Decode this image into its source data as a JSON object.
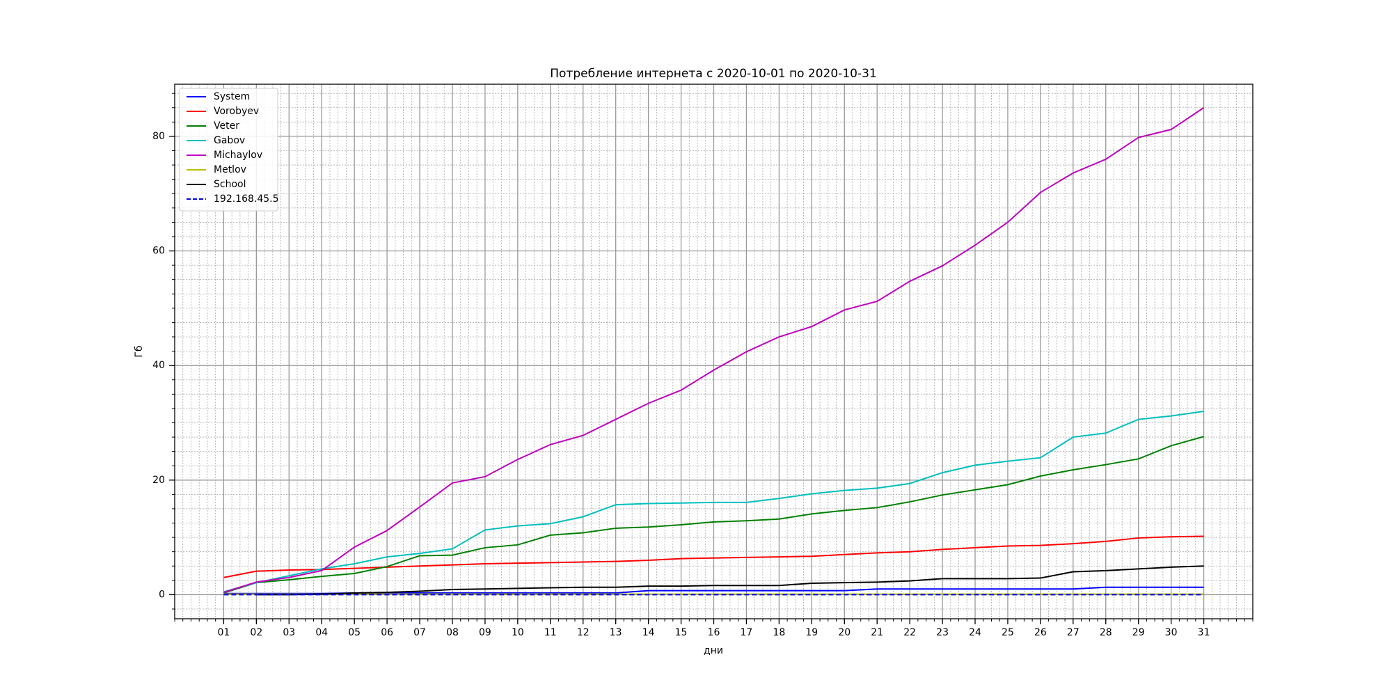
{
  "chart_data": {
    "type": "line",
    "title": "Потребление интернета с 2020-10-01 по 2020-10-31",
    "xlabel": "дни",
    "ylabel": "Гб",
    "categories": [
      "01",
      "02",
      "03",
      "04",
      "05",
      "06",
      "07",
      "08",
      "09",
      "10",
      "11",
      "12",
      "13",
      "14",
      "15",
      "16",
      "17",
      "18",
      "19",
      "20",
      "21",
      "22",
      "23",
      "24",
      "25",
      "26",
      "27",
      "28",
      "29",
      "30",
      "31"
    ],
    "ylim": [
      -4.2,
      89.1
    ],
    "yticks": [
      0,
      20,
      40,
      60,
      80
    ],
    "grid": true,
    "legend": "upper left",
    "series": [
      {
        "name": "System",
        "color": "#0000ff",
        "values": [
          0.2,
          0.2,
          0.2,
          0.2,
          0.3,
          0.3,
          0.3,
          0.3,
          0.3,
          0.3,
          0.3,
          0.3,
          0.3,
          0.7,
          0.7,
          0.7,
          0.7,
          0.7,
          0.7,
          0.7,
          1.0,
          1.0,
          1.0,
          1.0,
          1.0,
          1.0,
          1.0,
          1.3,
          1.3,
          1.3,
          1.3
        ]
      },
      {
        "name": "Vorobyev",
        "color": "#ff0000",
        "values": [
          3.0,
          4.1,
          4.3,
          4.4,
          4.6,
          4.8,
          5.0,
          5.2,
          5.4,
          5.5,
          5.6,
          5.7,
          5.8,
          6.0,
          6.3,
          6.4,
          6.5,
          6.6,
          6.7,
          7.0,
          7.3,
          7.5,
          7.9,
          8.2,
          8.5,
          8.6,
          8.9,
          9.3,
          9.9,
          10.1,
          10.2
        ]
      },
      {
        "name": "Veter",
        "color": "#008000",
        "values": [
          0.3,
          2.1,
          2.6,
          3.2,
          3.7,
          4.9,
          6.8,
          6.9,
          8.2,
          8.7,
          10.4,
          10.8,
          11.6,
          11.8,
          12.2,
          12.7,
          12.9,
          13.2,
          14.1,
          14.7,
          15.2,
          16.2,
          17.4,
          18.3,
          19.2,
          20.7,
          21.8,
          22.7,
          23.7,
          26.0,
          27.6
        ]
      },
      {
        "name": "Gabov",
        "color": "#00bfbf",
        "values": [
          0.5,
          2.1,
          3.3,
          4.5,
          5.4,
          6.6,
          7.2,
          8.0,
          11.3,
          12.0,
          12.4,
          13.6,
          15.7,
          15.9,
          16.0,
          16.1,
          16.1,
          16.8,
          17.6,
          18.2,
          18.6,
          19.4,
          21.3,
          22.6,
          23.3,
          23.9,
          27.5,
          28.2,
          30.6,
          31.2,
          32.0
        ]
      },
      {
        "name": "Michaylov",
        "color": "#bf00bf",
        "values": [
          0.4,
          2.2,
          3.0,
          4.2,
          8.3,
          11.2,
          15.3,
          19.5,
          20.6,
          23.6,
          26.2,
          27.8,
          30.6,
          33.4,
          35.7,
          39.2,
          42.4,
          45.0,
          46.8,
          49.7,
          51.2,
          54.7,
          57.4,
          61.0,
          65.0,
          70.2,
          73.6,
          76.0,
          79.8,
          81.2,
          85.0
        ]
      },
      {
        "name": "Metlov",
        "color": "#bfbf00",
        "values": [
          0.1,
          0.1,
          0.1,
          0.1,
          0.1,
          0.1,
          0.1,
          0.1,
          0.1,
          0.1,
          0.1,
          0.1,
          0.1,
          0.1,
          0.1,
          0.1,
          0.1,
          0.1,
          0.1,
          0.1,
          0.1,
          0.1,
          0.1,
          0.1,
          0.1,
          0.1,
          0.1,
          0.1,
          0.1,
          0.1,
          0.1
        ]
      },
      {
        "name": "School",
        "color": "#000000",
        "values": [
          null,
          0,
          0,
          0.1,
          0.3,
          0.4,
          0.6,
          0.9,
          1.0,
          1.1,
          1.2,
          1.3,
          1.3,
          1.5,
          1.5,
          1.6,
          1.6,
          1.6,
          2.0,
          2.1,
          2.2,
          2.4,
          2.8,
          2.8,
          2.8,
          2.9,
          4.0,
          4.2,
          4.5,
          4.8,
          5.0
        ]
      },
      {
        "name": "192.168.45.5",
        "color": "#0000ff",
        "dashed": true,
        "values": [
          0,
          0,
          0,
          0,
          0,
          0,
          0,
          0,
          0,
          0,
          0,
          0,
          0,
          0,
          0,
          0,
          0,
          0,
          0,
          0,
          0,
          0,
          0,
          0,
          0,
          0,
          0,
          0,
          0,
          0,
          0
        ]
      }
    ]
  }
}
